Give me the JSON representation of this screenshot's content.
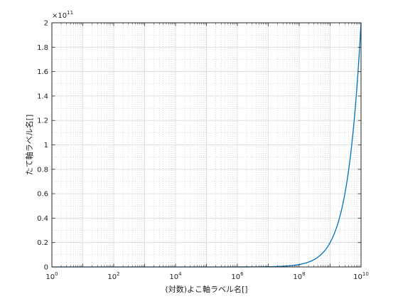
{
  "chart_data": {
    "type": "line",
    "title": "",
    "xlabel": "(対数)よこ軸ラベル名[]",
    "ylabel": "たて軸ラベル名[]",
    "xscale": "log",
    "xlim": [
      1,
      10000000000
    ],
    "ylim": [
      0,
      200000000000
    ],
    "y_multiplier": "×10",
    "y_multiplier_exponent": "11",
    "grid": "major and minor",
    "x_ticks": [
      {
        "base": "10",
        "exp": "0"
      },
      {
        "base": "10",
        "exp": "2"
      },
      {
        "base": "10",
        "exp": "4"
      },
      {
        "base": "10",
        "exp": "6"
      },
      {
        "base": "10",
        "exp": "8"
      },
      {
        "base": "10",
        "exp": "10"
      }
    ],
    "y_ticks": [
      "0",
      "0.2",
      "0.4",
      "0.6",
      "0.8",
      "1",
      "1.2",
      "1.4",
      "1.6",
      "1.8",
      "2"
    ],
    "series": [
      {
        "color": "#0072bd",
        "function": "y = 20x",
        "x": [
          1,
          10,
          100,
          1000,
          10000,
          100000,
          1000000,
          10000000,
          100000000,
          1000000000,
          10000000000
        ],
        "y": [
          20,
          200,
          2000,
          20000,
          200000,
          2000000,
          20000000,
          200000000,
          2000000000,
          20000000000,
          200000000000
        ]
      }
    ]
  }
}
